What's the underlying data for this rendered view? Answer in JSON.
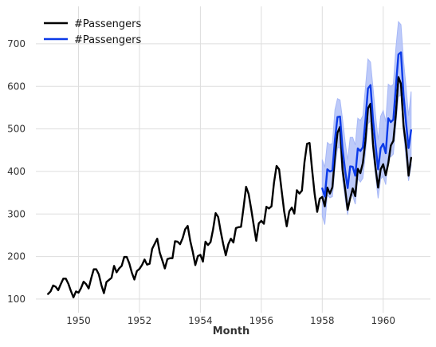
{
  "chart_data": {
    "type": "line",
    "xlabel": "Month",
    "ylabel": "",
    "xlim": [
      1948.6,
      1961.55
    ],
    "ylim": [
      68,
      788
    ],
    "x_ticks": [
      1950,
      1952,
      1954,
      1956,
      1958,
      1960
    ],
    "x_tick_labels": [
      "1950",
      "1952",
      "1954",
      "1956",
      "1958",
      "1960"
    ],
    "y_ticks": [
      100,
      200,
      300,
      400,
      500,
      600,
      700
    ],
    "y_tick_labels": [
      "100",
      "200",
      "300",
      "400",
      "500",
      "600",
      "700"
    ],
    "grid": true,
    "legend_position": "top-left",
    "colors": {
      "actual": "#000000",
      "forecast": "#0b3ae8",
      "band": "#a7b8f7"
    },
    "series": [
      {
        "name": "#Passengers",
        "x_start": 1949.0,
        "x_step_months": 1,
        "values": [
          112,
          118,
          132,
          129,
          121,
          135,
          148,
          148,
          136,
          119,
          104,
          118,
          115,
          126,
          141,
          135,
          125,
          149,
          170,
          170,
          158,
          133,
          114,
          140,
          145,
          150,
          178,
          163,
          172,
          178,
          199,
          199,
          184,
          162,
          146,
          166,
          171,
          180,
          193,
          181,
          183,
          218,
          230,
          242,
          209,
          191,
          172,
          194,
          196,
          196,
          236,
          235,
          229,
          243,
          264,
          272,
          237,
          211,
          180,
          201,
          204,
          188,
          235,
          227,
          234,
          264,
          302,
          293,
          259,
          229,
          203,
          229,
          242,
          233,
          267,
          269,
          270,
          315,
          364,
          347,
          312,
          274,
          237,
          278,
          284,
          277,
          317,
          313,
          318,
          374,
          413,
          405,
          355,
          306,
          271,
          306,
          315,
          301,
          356,
          348,
          355,
          422,
          465,
          467,
          404,
          347,
          305,
          336,
          340,
          318,
          362,
          348,
          363,
          435,
          491,
          505,
          404,
          359,
          310,
          337,
          360,
          342,
          406,
          396,
          420,
          472,
          548,
          559,
          463,
          407,
          362,
          405,
          417,
          391,
          419,
          461,
          472,
          535,
          622,
          606,
          508,
          461,
          390,
          432
        ]
      },
      {
        "name": "#Passengers",
        "x_start": 1958.0,
        "x_step_months": 1,
        "values": [
          360,
          341,
          405,
          400,
          402,
          475,
          528,
          529,
          452,
          403,
          361,
          412,
          411,
          390,
          454,
          448,
          457,
          520,
          595,
          603,
          520,
          462,
          405,
          455,
          465,
          443,
          525,
          516,
          522,
          600,
          675,
          680,
          580,
          515,
          455,
          497
        ],
        "lower": [
          295,
          275,
          345,
          338,
          341,
          407,
          456,
          455,
          382,
          337,
          298,
          346,
          343,
          323,
          383,
          375,
          384,
          443,
          512,
          519,
          443,
          390,
          337,
          382,
          389,
          369,
          445,
          434,
          441,
          511,
          576,
          580,
          490,
          432,
          378,
          414
        ],
        "upper": [
          428,
          410,
          468,
          463,
          466,
          545,
          571,
          568,
          522,
          470,
          427,
          480,
          480,
          462,
          525,
          520,
          531,
          597,
          664,
          657,
          596,
          532,
          474,
          530,
          543,
          517,
          605,
          600,
          605,
          690,
          752,
          745,
          661,
          599,
          531,
          588
        ]
      }
    ]
  }
}
